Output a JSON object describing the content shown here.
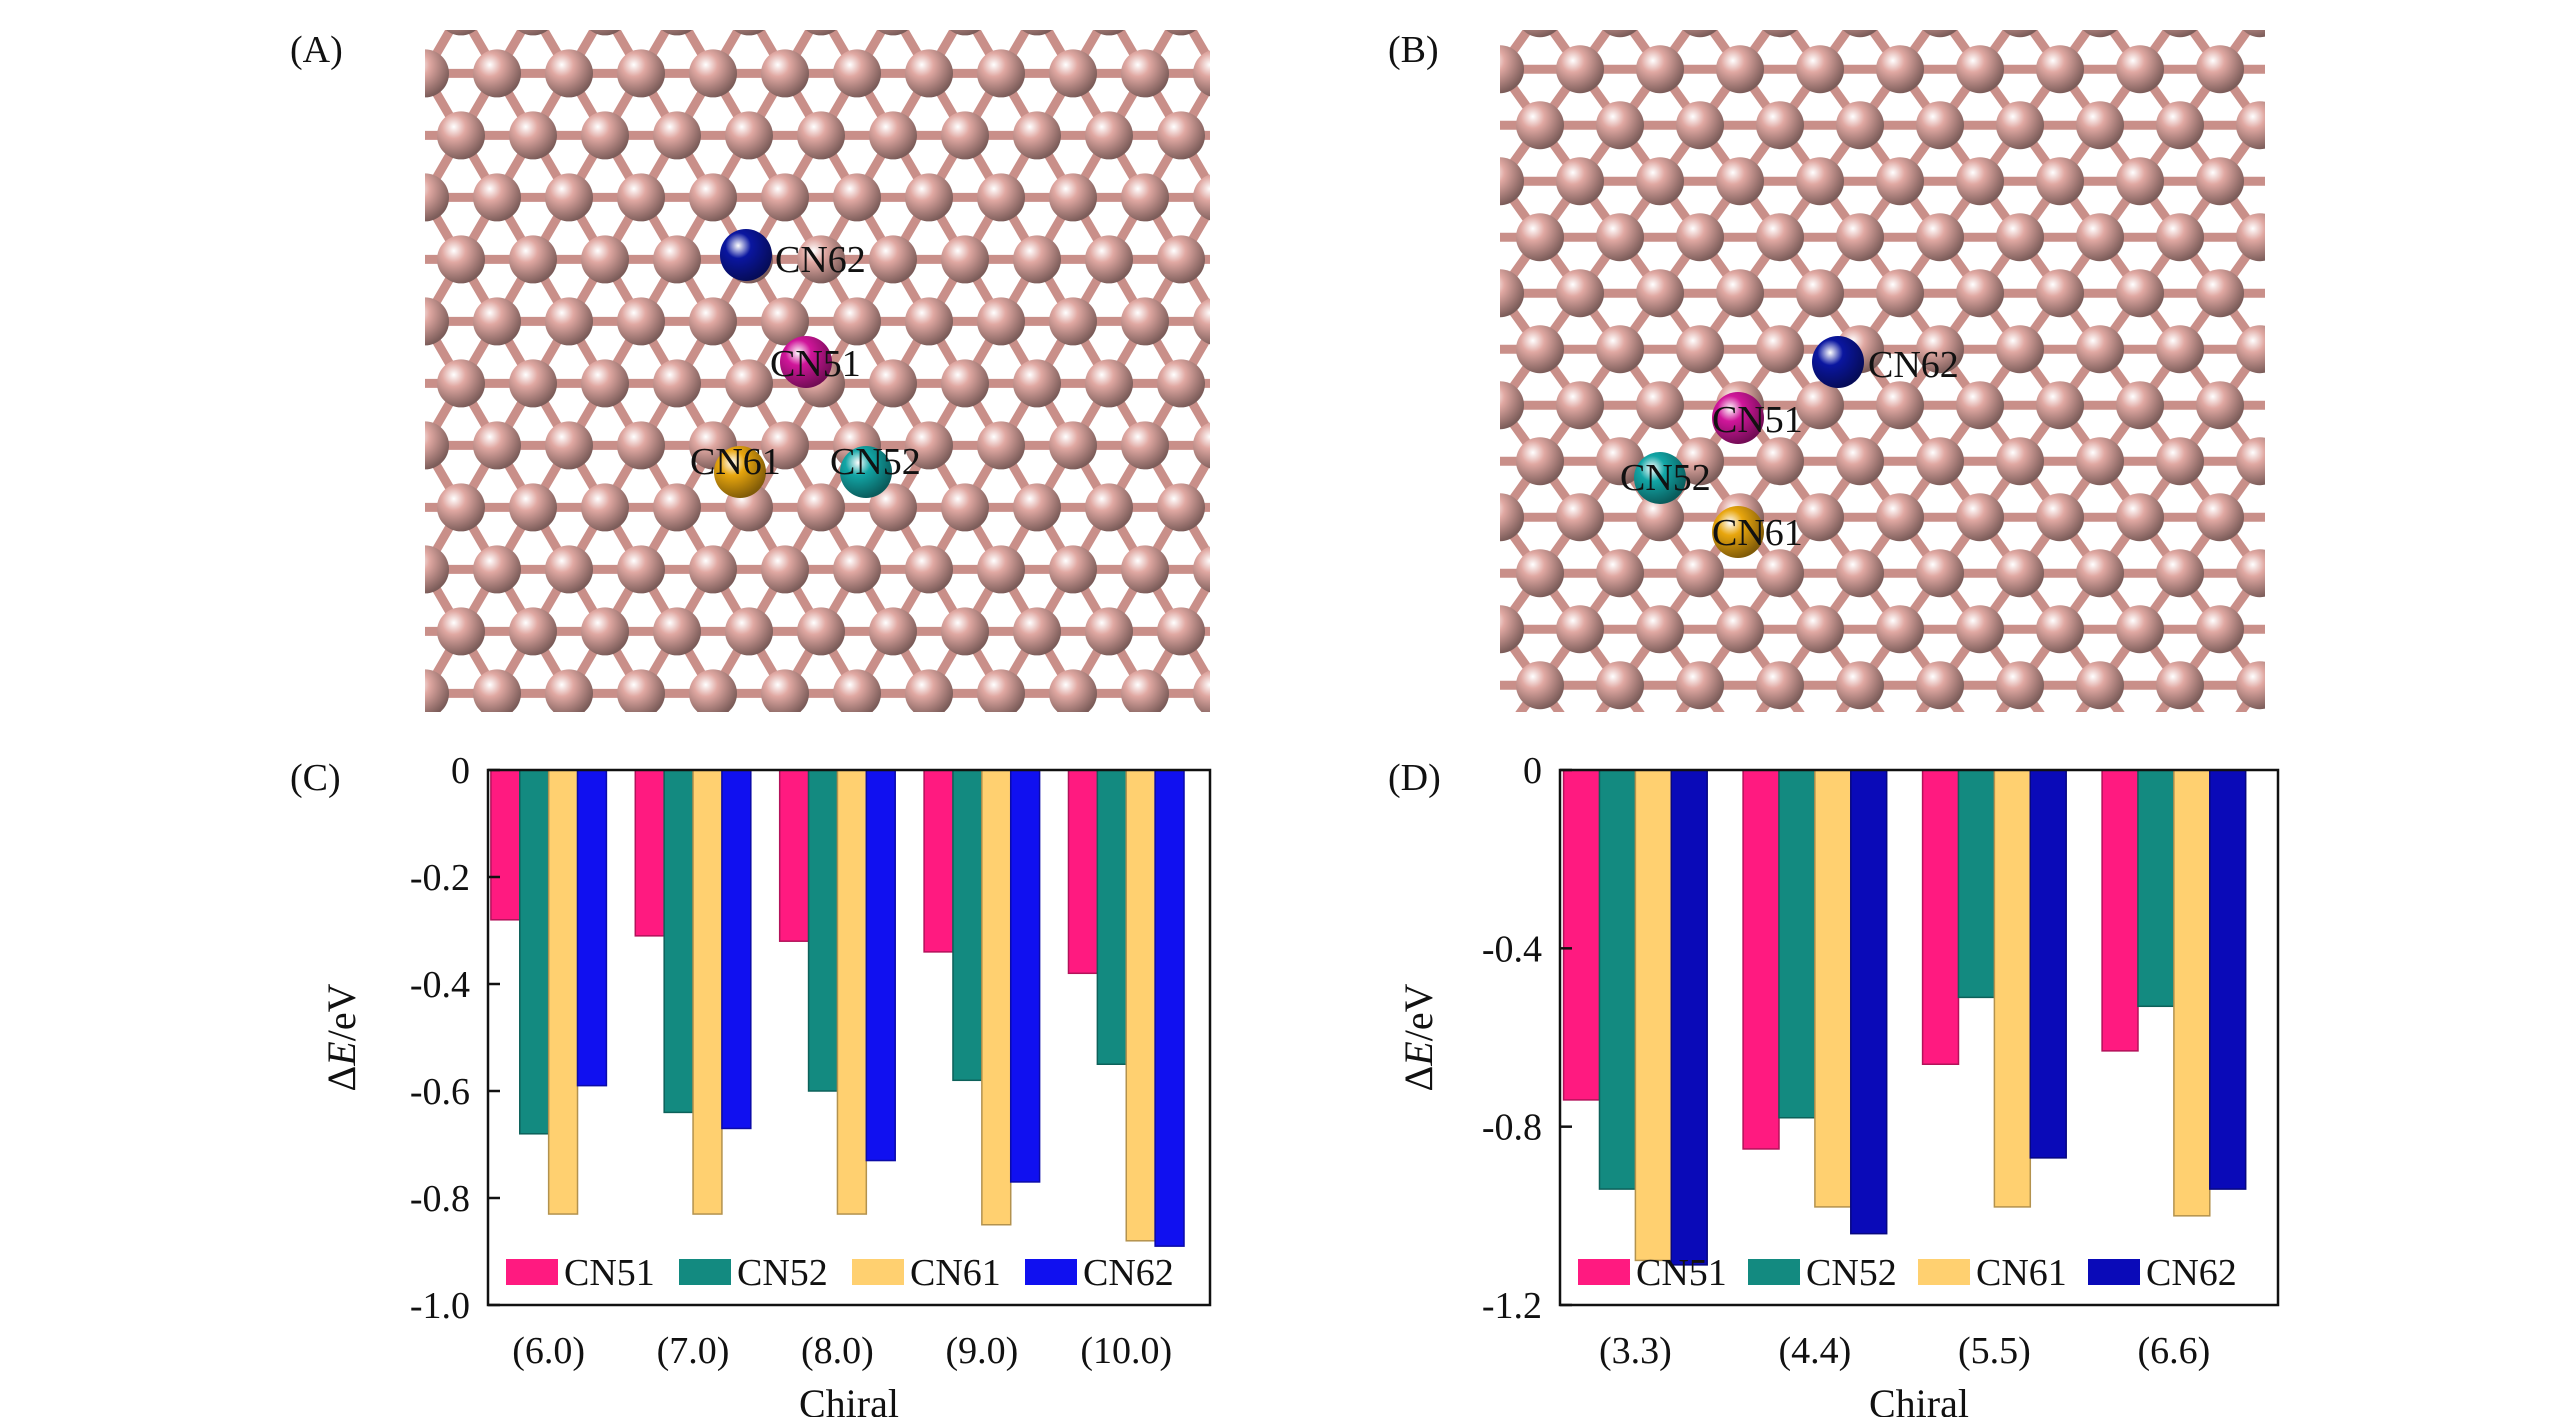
{
  "panels": {
    "A": {
      "label": "(A)",
      "atom_labels": [
        "CN62",
        "CN51",
        "CN61",
        "CN52"
      ],
      "atom_colors": {
        "base": "#e0a8a2",
        "CN62": "#0a16a0",
        "CN51": "#d0169a",
        "CN61": "#e8a60e",
        "CN52": "#12a6a6"
      }
    },
    "B": {
      "label": "(B)",
      "atom_labels": [
        "CN62",
        "CN51",
        "CN52",
        "CN61"
      ],
      "atom_colors": {
        "base": "#e0a8a2",
        "CN62": "#0a16a0",
        "CN51": "#d0169a",
        "CN61": "#e8a60e",
        "CN52": "#12a6a6"
      }
    }
  },
  "chart_data": [
    {
      "panel_label": "(C)",
      "type": "bar",
      "categories": [
        "(6.0)",
        "(7.0)",
        "(8.0)",
        "(9.0)",
        "(10.0)"
      ],
      "series": [
        {
          "name": "CN51",
          "color": "#ff1a80",
          "values": [
            -0.28,
            -0.31,
            -0.32,
            -0.34,
            -0.38
          ]
        },
        {
          "name": "CN52",
          "color": "#138a80",
          "values": [
            -0.68,
            -0.64,
            -0.6,
            -0.58,
            -0.55
          ]
        },
        {
          "name": "CN61",
          "color": "#ffd070",
          "values": [
            -0.83,
            -0.83,
            -0.83,
            -0.85,
            -0.88
          ]
        },
        {
          "name": "CN62",
          "color": "#1010f0",
          "values": [
            -0.59,
            -0.67,
            -0.73,
            -0.77,
            -0.89
          ]
        }
      ],
      "ylabel_symbol": "ΔE",
      "ylabel_unit": "/eV",
      "xlabel": "Chiral",
      "ylim": [
        -1.0,
        0
      ],
      "yticks": [
        0,
        -0.2,
        -0.4,
        -0.6,
        -0.8,
        -1.0
      ],
      "ytick_labels": [
        "0",
        "-0.2",
        "-0.4",
        "-0.6",
        "-0.8",
        "-1.0"
      ],
      "legend": "bottom"
    },
    {
      "panel_label": "(D)",
      "type": "bar",
      "categories": [
        "(3.3)",
        "(4.4)",
        "(5.5)",
        "(6.6)"
      ],
      "series": [
        {
          "name": "CN51",
          "color": "#ff1a80",
          "values": [
            -0.74,
            -0.85,
            -0.66,
            -0.63
          ]
        },
        {
          "name": "CN52",
          "color": "#138a80",
          "values": [
            -0.94,
            -0.78,
            -0.51,
            -0.53
          ]
        },
        {
          "name": "CN61",
          "color": "#ffd070",
          "values": [
            -1.1,
            -0.98,
            -0.98,
            -1.0
          ]
        },
        {
          "name": "CN62",
          "color": "#0a0ab8",
          "values": [
            -1.11,
            -1.04,
            -0.87,
            -0.94
          ]
        }
      ],
      "ylabel_symbol": "ΔE",
      "ylabel_unit": "/eV",
      "xlabel": "Chiral",
      "ylim": [
        -1.2,
        0
      ],
      "yticks": [
        0,
        -0.4,
        -0.8,
        -1.2
      ],
      "ytick_labels": [
        "0",
        "-0.4",
        "-0.8",
        "-1.2"
      ],
      "legend": "bottom"
    }
  ]
}
